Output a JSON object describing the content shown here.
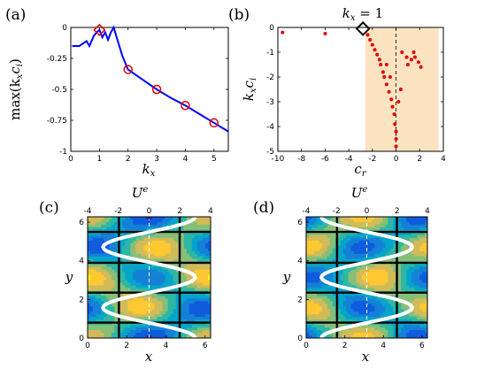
{
  "panel_labels": [
    "(a)",
    "(b)",
    "(c)",
    "(d)"
  ],
  "colors": {
    "curve": "#0000ff",
    "markers": "#e00000",
    "shade": "#fbe3c2",
    "profile": "#ffffff",
    "contour_line": "#000000"
  },
  "chart_data": [
    {
      "type": "line",
      "panel": "(a)",
      "xlabel": "k",
      "xlabel_sub": "x",
      "ylabel": "max(k",
      "ylabel_sub1": "x",
      "ylabel_mid": "c",
      "ylabel_sub2": "i",
      "ylabel_end": ")",
      "xlim": [
        0,
        5.5
      ],
      "ylim": [
        -1,
        0
      ],
      "xticks": [
        0,
        1,
        2,
        3,
        4,
        5
      ],
      "yticks": [
        0,
        -0.25,
        -0.5,
        -0.75,
        -1
      ],
      "ytick_labels": [
        "0",
        "-0.25",
        "-0.5",
        "-0.75",
        "-1"
      ],
      "series": [
        {
          "x": [
            0.05,
            0.3,
            0.55,
            0.65,
            0.8,
            0.9,
            1.0,
            1.1,
            1.2,
            1.3,
            1.4,
            1.5,
            1.6,
            1.8,
            2.0,
            2.5,
            3.0,
            3.5,
            4.0,
            4.5,
            5.0,
            5.5
          ],
          "y": [
            -0.15,
            -0.15,
            -0.11,
            -0.15,
            -0.07,
            -0.04,
            -0.02,
            -0.08,
            -0.04,
            -0.1,
            -0.04,
            -0.0,
            -0.08,
            -0.23,
            -0.34,
            -0.42,
            -0.5,
            -0.57,
            -0.63,
            -0.7,
            -0.77,
            -0.84
          ]
        }
      ],
      "circle_markers": {
        "x": [
          2,
          3,
          4,
          5
        ],
        "y": [
          -0.34,
          -0.5,
          -0.63,
          -0.77
        ]
      },
      "diamond_marker": {
        "x": 1.0,
        "y": -0.02
      }
    },
    {
      "type": "scatter",
      "panel": "(b)",
      "title": "k",
      "title_sub": "x",
      "title_rest": " = 1",
      "xlabel": "c",
      "xlabel_sub": "r",
      "ylabel": "k",
      "ylabel_sub1": "x",
      "ylabel_mid": "c",
      "ylabel_sub2": "i",
      "xlim": [
        -10,
        4
      ],
      "ylim": [
        -5,
        0
      ],
      "xticks": [
        -10,
        -8,
        -6,
        -4,
        -2,
        0,
        2,
        4
      ],
      "yticks": [
        0,
        -1,
        -2,
        -3,
        -4,
        -5
      ],
      "shaded_region": [
        -2.6,
        3.6
      ],
      "points": [
        [
          -9.6,
          -0.2
        ],
        [
          -6.0,
          -0.25
        ],
        [
          -2.4,
          -0.3
        ],
        [
          -2.2,
          -0.5
        ],
        [
          -2.0,
          -0.7
        ],
        [
          -1.8,
          -0.9
        ],
        [
          -1.6,
          -1.1
        ],
        [
          -1.4,
          -1.3
        ],
        [
          -1.3,
          -1.5
        ],
        [
          -1.1,
          -1.8
        ],
        [
          -1.0,
          -2.0
        ],
        [
          -0.8,
          -2.3
        ],
        [
          -0.6,
          -2.6
        ],
        [
          -0.4,
          -2.9
        ],
        [
          -0.3,
          -3.2
        ],
        [
          -0.15,
          -3.5
        ],
        [
          -0.1,
          -3.9
        ],
        [
          0.0,
          -4.2
        ],
        [
          0.0,
          -4.5
        ],
        [
          0.0,
          -4.8
        ],
        [
          0.5,
          -1.0
        ],
        [
          0.9,
          -1.2
        ],
        [
          1.0,
          -1.5
        ],
        [
          1.3,
          -1.3
        ],
        [
          1.6,
          -1.2
        ],
        [
          1.9,
          -1.4
        ],
        [
          2.1,
          -1.6
        ],
        [
          1.5,
          -1.0
        ],
        [
          -0.5,
          -2.0
        ],
        [
          0.2,
          -3.0
        ],
        [
          0.4,
          -2.5
        ],
        [
          -0.8,
          -1.5
        ]
      ],
      "diamond_marker": {
        "x": -2.8,
        "y": -0.05
      }
    },
    {
      "type": "heatmap",
      "panel": "(c)",
      "xlabel": "x",
      "ylabel": "y",
      "top_axis_label": "U",
      "top_axis_sup": "e",
      "xlim": [
        0,
        6.28
      ],
      "ylim": [
        0,
        6.28
      ],
      "xticks": [
        0,
        2,
        4,
        6
      ],
      "yticks": [
        0,
        2,
        4,
        6
      ],
      "top_xlim": [
        -4,
        4
      ],
      "top_xticks": [
        -4,
        -2,
        0,
        2,
        4
      ],
      "profile": {
        "offset": 0.0,
        "amplitude": 3.0,
        "phase": 0.0
      },
      "field": {
        "mode": "c"
      }
    },
    {
      "type": "heatmap",
      "panel": "(d)",
      "xlabel": "x",
      "ylabel": "y",
      "top_axis_label": "U",
      "top_axis_sup": "e",
      "xlim": [
        0,
        6.28
      ],
      "ylim": [
        0,
        6.28
      ],
      "xticks": [
        0,
        2,
        4,
        6
      ],
      "yticks": [
        0,
        2,
        4,
        6
      ],
      "top_xlim": [
        -4,
        4
      ],
      "top_xticks": [
        -4,
        -2,
        0,
        2,
        4
      ],
      "profile": {
        "offset": 0.0,
        "amplitude": 3.0,
        "phase": 0.0
      },
      "field": {
        "mode": "d"
      }
    }
  ]
}
